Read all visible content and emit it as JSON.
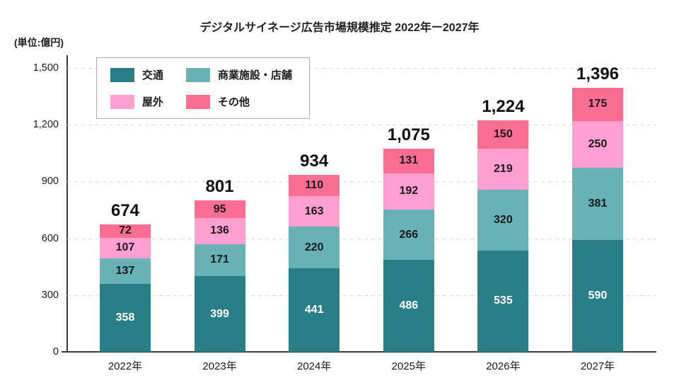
{
  "title": "デジタルサイネージ広告市場規模推定 2022年ー2027年",
  "unit_label": "(単位:億円)",
  "chart_data": {
    "type": "bar",
    "stacked": true,
    "title": "デジタルサイネージ広告市場規模推定 2022年ー2027年",
    "unit": "億円",
    "categories": [
      "2022年",
      "2023年",
      "2024年",
      "2025年",
      "2026年",
      "2027年"
    ],
    "series": [
      {
        "name": "交通",
        "color": "#2a7e87",
        "label_color": "#ffffff",
        "values": [
          358,
          399,
          441,
          486,
          535,
          590
        ]
      },
      {
        "name": "商業施設・店舗",
        "color": "#68b2b5",
        "label_color": "#1a1a1a",
        "values": [
          137,
          171,
          220,
          266,
          320,
          381
        ]
      },
      {
        "name": "屋外",
        "color": "#ffa0d0",
        "label_color": "#1a1a1a",
        "values": [
          107,
          136,
          163,
          192,
          219,
          250
        ]
      },
      {
        "name": "その他",
        "color": "#fa6e91",
        "label_color": "#1a1a1a",
        "values": [
          72,
          95,
          110,
          131,
          150,
          175
        ]
      }
    ],
    "totals": [
      "674",
      "801",
      "934",
      "1,075",
      "1,224",
      "1,396"
    ],
    "y_axis": {
      "min": 0,
      "max": 1500,
      "ticks": [
        {
          "label": "0",
          "value": 0
        },
        {
          "label": "300",
          "value": 300
        },
        {
          "label": "600",
          "value": 600
        },
        {
          "label": "900",
          "value": 900
        },
        {
          "label": "1,200",
          "value": 1200
        },
        {
          "label": "1,500",
          "value": 1500
        }
      ]
    },
    "grid": "horizontal-dashed",
    "legend_position": "top-left-inside"
  }
}
